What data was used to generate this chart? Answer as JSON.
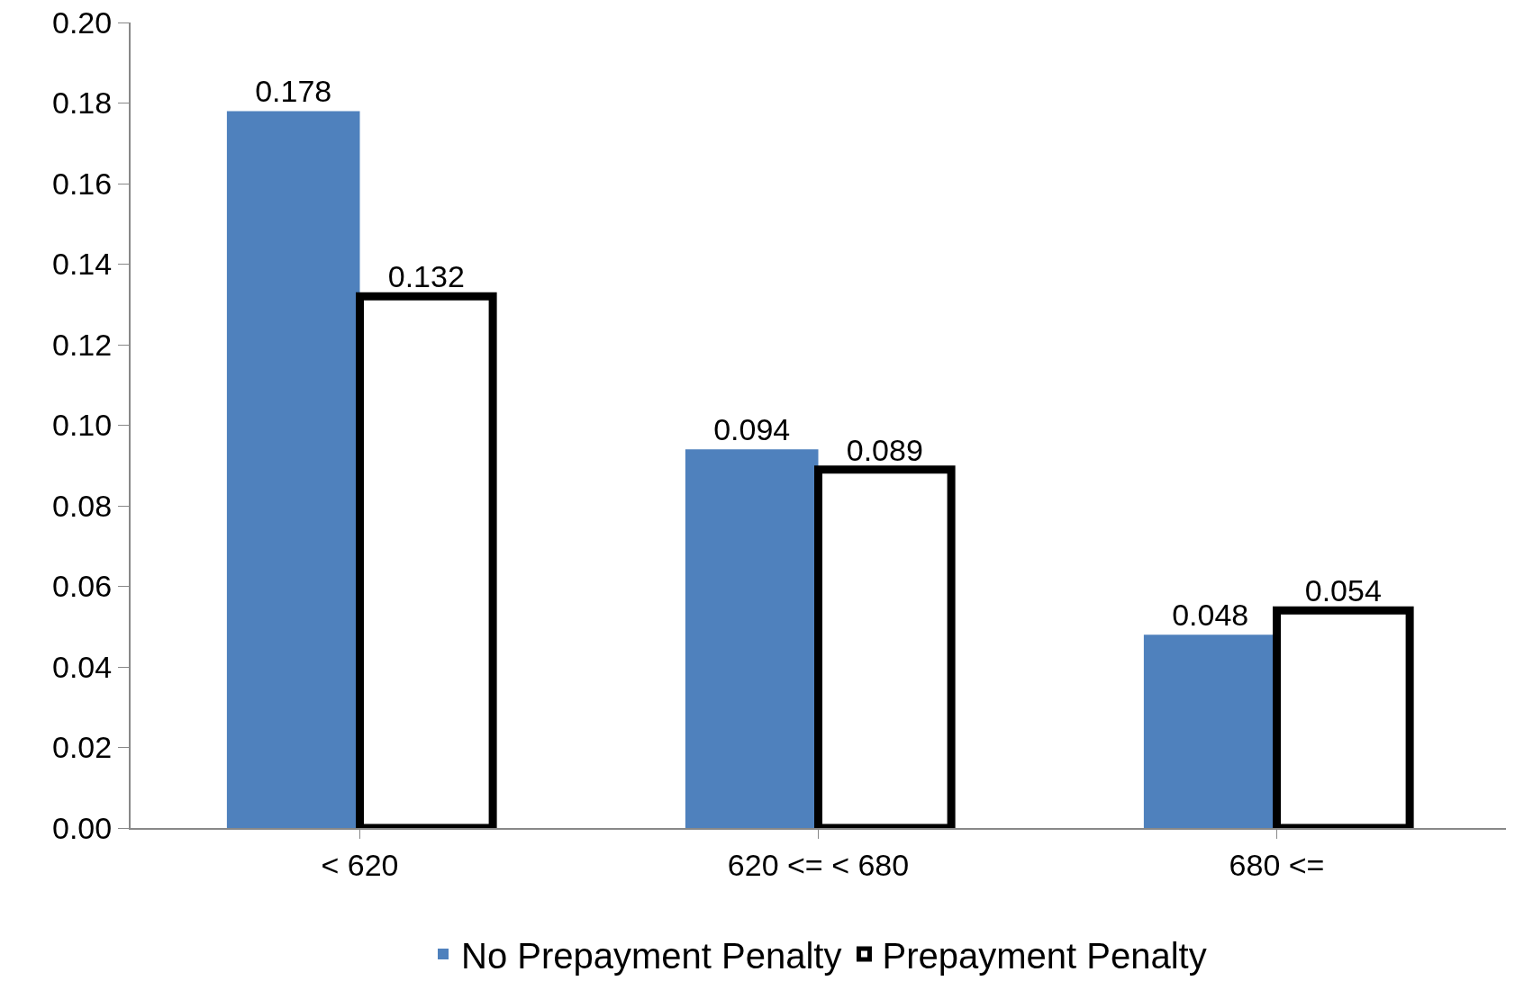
{
  "chart_data": {
    "type": "bar",
    "categories": [
      "< 620",
      "620 <= < 680",
      "680 <="
    ],
    "series": [
      {
        "name": "No Prepayment Penalty",
        "color": "#4f81bd",
        "values": [
          0.178,
          0.094,
          0.048
        ]
      },
      {
        "name": "Prepayment Penalty",
        "color": "#ffffff",
        "values": [
          0.132,
          0.089,
          0.054
        ]
      }
    ],
    "ylim": [
      0,
      0.2
    ],
    "yticks": [
      {
        "value": 0,
        "label": "0.00"
      },
      {
        "value": 0.02,
        "label": "0.02"
      },
      {
        "value": 0.04,
        "label": "0.04"
      },
      {
        "value": 0.06,
        "label": "0.06"
      },
      {
        "value": 0.08,
        "label": "0.08"
      },
      {
        "value": 0.1,
        "label": "0.10"
      },
      {
        "value": 0.12,
        "label": "0.12"
      },
      {
        "value": 0.14,
        "label": "0.14"
      },
      {
        "value": 0.16,
        "label": "0.16"
      },
      {
        "value": 0.18,
        "label": "0.18"
      },
      {
        "value": 0.2,
        "label": "0.20"
      }
    ],
    "data_labels": true,
    "grid": false,
    "legend": "bottom"
  }
}
